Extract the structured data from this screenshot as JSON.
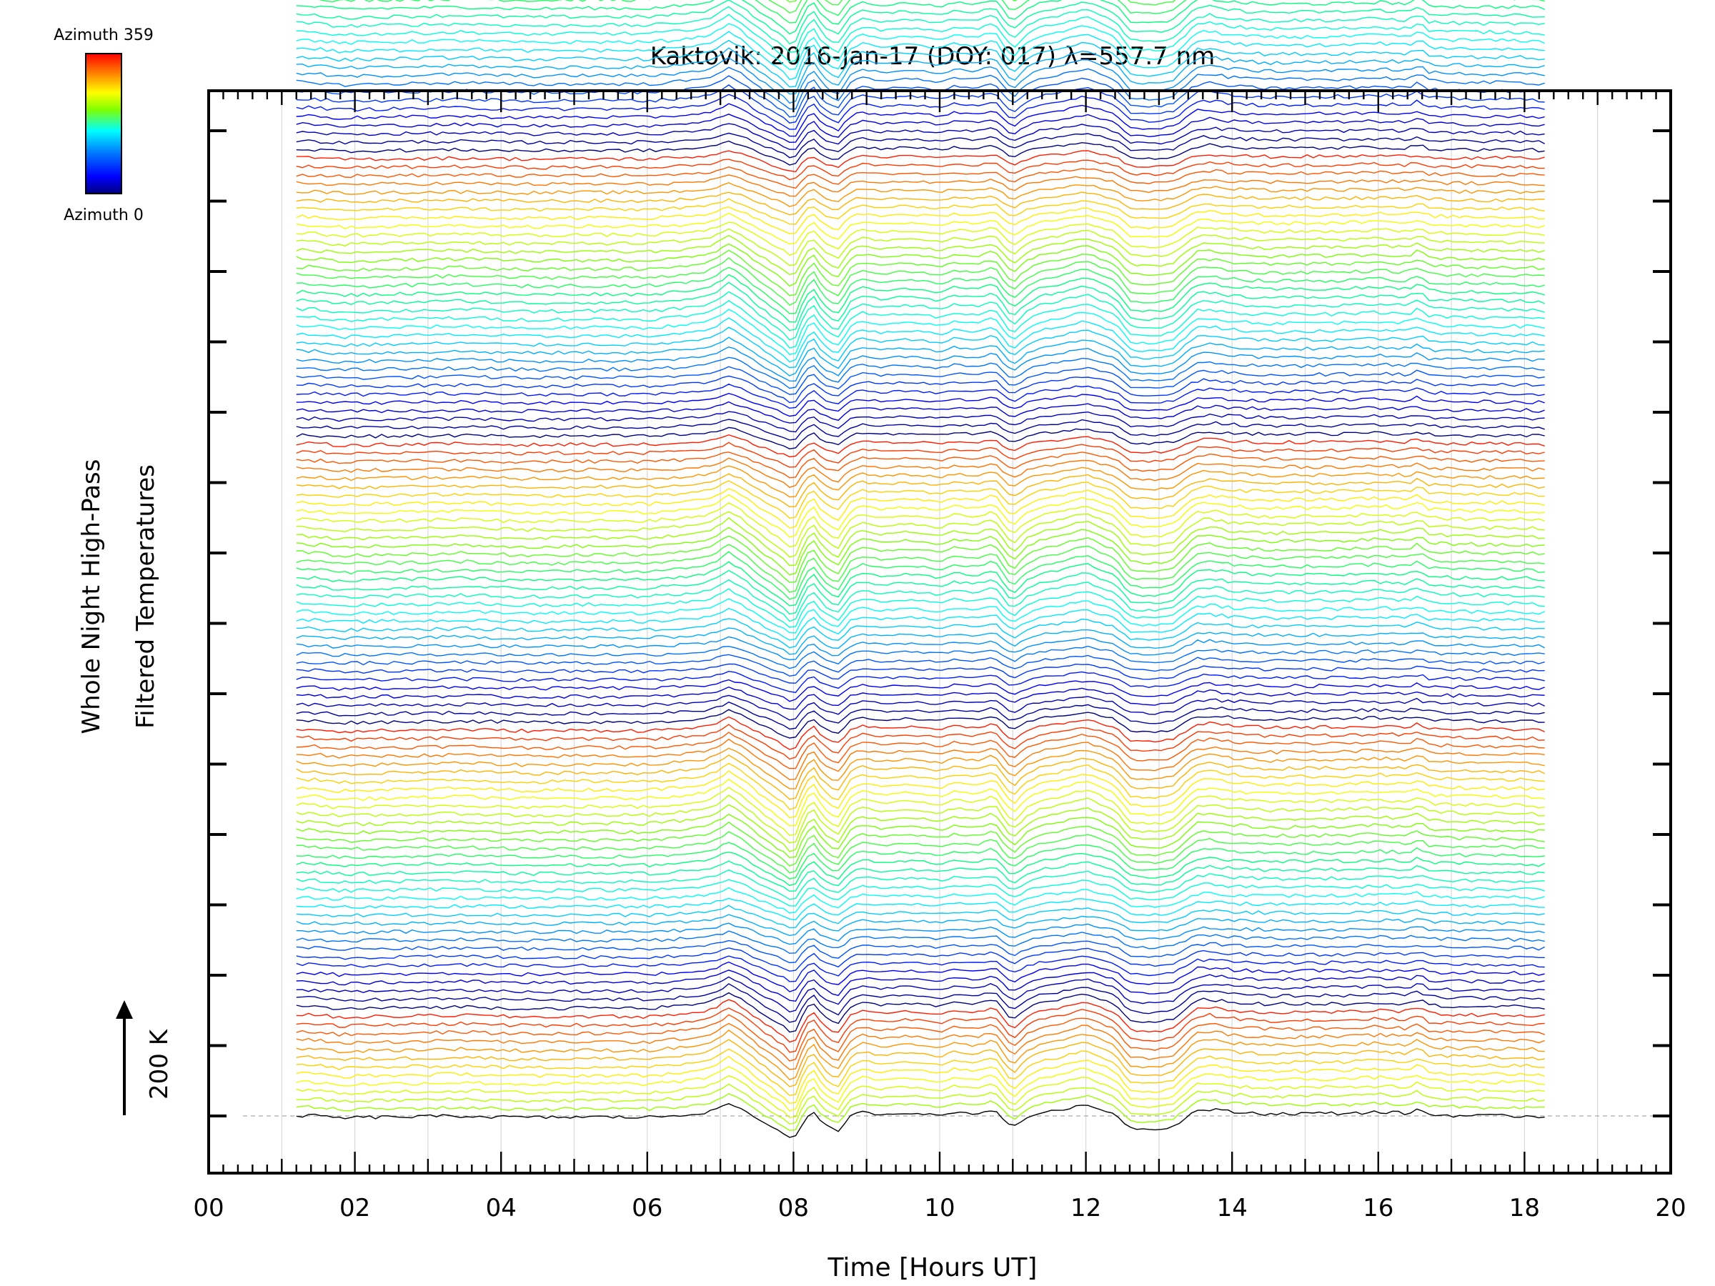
{
  "chart_data": {
    "type": "line",
    "title": "Kaktovik: 2016-Jan-17 (DOY: 017) λ=557.7 nm",
    "xlabel": "Time [Hours UT]",
    "ylabel_line1": "Whole Night High-Pass",
    "ylabel_line2": "Filtered Temperatures",
    "scale_label": "200 K",
    "colorbar": {
      "top_label": "Azimuth 359",
      "bottom_label": "Azimuth 0",
      "colors": [
        "#ff0000",
        "#ff8000",
        "#ffff00",
        "#80ff00",
        "#00ff80",
        "#00ffff",
        "#0080ff",
        "#0000ff",
        "#00007f"
      ]
    },
    "xlim": [
      0,
      20
    ],
    "x_ticks": [
      "00",
      "02",
      "04",
      "06",
      "08",
      "10",
      "12",
      "14",
      "16",
      "18",
      "20"
    ],
    "data_time_range_hours_ut": [
      1.2,
      18.35
    ],
    "trace_count": 140,
    "trace_offset_kelvin": 24,
    "grid": true,
    "common_profile": {
      "time": [
        1.2,
        1.5,
        1.8,
        2.0,
        2.5,
        3.0,
        3.5,
        4.0,
        4.5,
        5.0,
        5.5,
        6.0,
        6.5,
        6.8,
        7.0,
        7.1,
        7.3,
        7.5,
        7.7,
        7.9,
        8.0,
        8.1,
        8.25,
        8.4,
        8.6,
        8.8,
        8.95,
        9.2,
        9.5,
        9.8,
        10.0,
        10.2,
        10.5,
        10.75,
        10.9,
        11.0,
        11.2,
        11.4,
        11.6,
        11.8,
        12.0,
        12.2,
        12.4,
        12.6,
        12.8,
        13.0,
        13.2,
        13.5,
        13.7,
        14.0,
        14.5,
        15.0,
        15.5,
        16.0,
        16.4,
        16.55,
        16.7,
        17.0,
        17.5,
        18.0,
        18.35
      ],
      "temperature_k": [
        2,
        0,
        -8,
        -6,
        -4,
        -2,
        0,
        -4,
        -6,
        -4,
        -4,
        -5,
        4,
        12,
        30,
        50,
        25,
        -10,
        -40,
        -70,
        -95,
        -40,
        20,
        -30,
        -60,
        5,
        15,
        5,
        12,
        8,
        0,
        15,
        8,
        25,
        -20,
        -45,
        -5,
        15,
        20,
        32,
        42,
        25,
        8,
        -45,
        -50,
        -50,
        -40,
        20,
        25,
        15,
        8,
        10,
        10,
        15,
        10,
        25,
        5,
        2,
        0,
        0,
        -5
      ]
    }
  }
}
